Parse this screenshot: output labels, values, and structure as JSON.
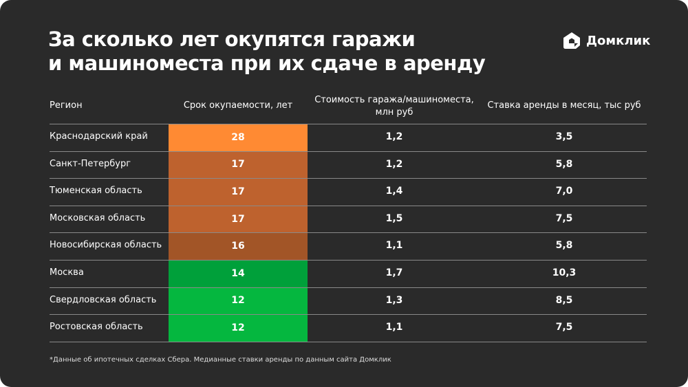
{
  "title_lines": [
    "За сколько лет окупятся гаражи",
    "и машиноместа при их сдаче в аренду"
  ],
  "logo": {
    "text": "Домклик",
    "icon": "domclick-house-icon"
  },
  "headers": {
    "region": "Регион",
    "payback": "Срок окупаемости, лет",
    "cost": "Стоимость гаража/машиноместа, млн руб",
    "rent": "Ставка аренды в месяц, тыс руб"
  },
  "rows": [
    {
      "region": "Краснодарский край",
      "payback": "28",
      "cost": "1,2",
      "rent": "3,5",
      "color": "#FF8A33"
    },
    {
      "region": "Санкт-Петербург",
      "payback": "17",
      "cost": "1,2",
      "rent": "5,8",
      "color": "#BE622E"
    },
    {
      "region": "Тюменская область",
      "payback": "17",
      "cost": "1,4",
      "rent": "7,0",
      "color": "#BE622E"
    },
    {
      "region": "Московская область",
      "payback": "17",
      "cost": "1,5",
      "rent": "7,5",
      "color": "#BE622E"
    },
    {
      "region": "Новосибирская область",
      "payback": "16",
      "cost": "1,1",
      "rent": "5,8",
      "color": "#A25527"
    },
    {
      "region": "Москва",
      "payback": "14",
      "cost": "1,7",
      "rent": "10,3",
      "color": "#00A03A"
    },
    {
      "region": "Свердловская область",
      "payback": "12",
      "cost": "1,3",
      "rent": "8,5",
      "color": "#05B73F"
    },
    {
      "region": "Ростовская область",
      "payback": "12",
      "cost": "1,1",
      "rent": "7,5",
      "color": "#05B73F"
    }
  ],
  "footnote": "*Данные об ипотечных сделках Сбера. Медианные ставки аренды по данным сайта Домклик"
}
